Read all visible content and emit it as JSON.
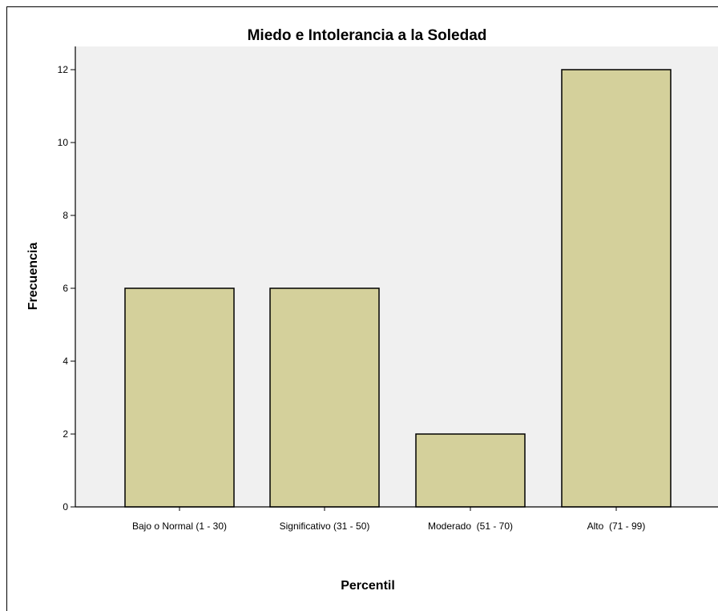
{
  "chart_data": {
    "type": "bar",
    "title": "Miedo e Intolerancia a la Soledad",
    "xlabel": "Percentil",
    "ylabel": "Frecuencia",
    "categories": [
      "Bajo o Normal (1 - 30)",
      "Significativo (31 - 50)",
      "Moderado  (51 - 70)",
      "Alto  (71 - 99)"
    ],
    "values": [
      6,
      6,
      2,
      12
    ],
    "ylim": [
      0,
      12.5
    ],
    "yticks": [
      0,
      2,
      4,
      6,
      8,
      10,
      12
    ],
    "grid": false,
    "colors": {
      "bar_fill": "#d4d09b",
      "bar_stroke": "#000000",
      "plot_background": "#f0f0f0"
    }
  }
}
